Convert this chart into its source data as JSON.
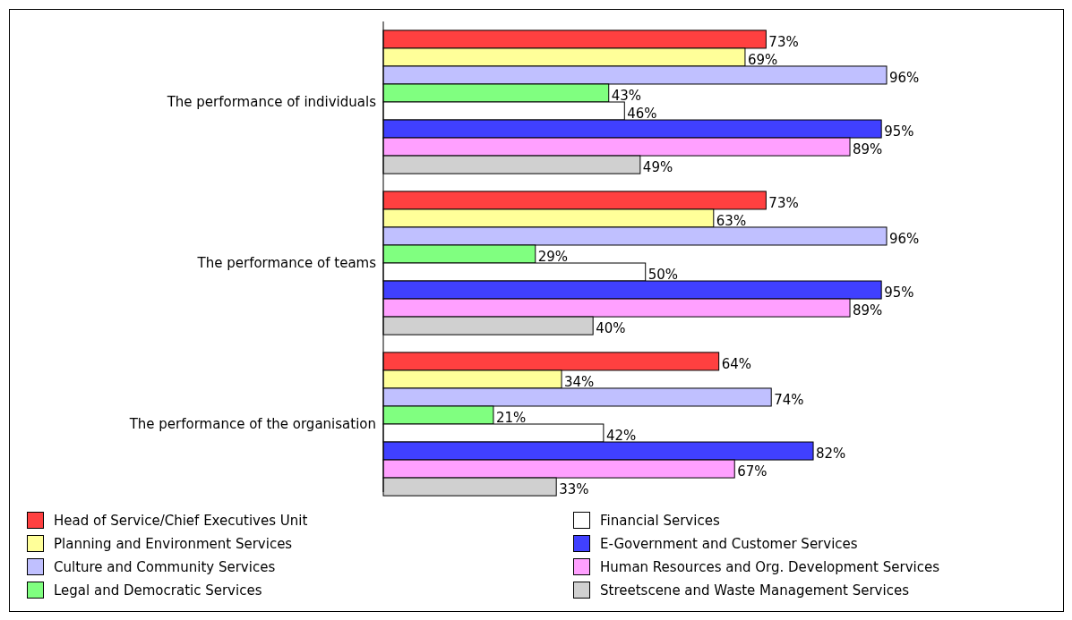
{
  "chart_data": {
    "type": "bar",
    "orientation": "horizontal",
    "categories": [
      "The performance of individuals",
      "The performance of teams",
      "The performance of the organisation"
    ],
    "tick_labels": "y",
    "legend": "bottom",
    "series": [
      {
        "name": "Head of Service/Chief Executives Unit",
        "color": "#ff4040",
        "values": [
          73,
          73,
          64
        ],
        "value_labels": [
          "73%",
          "73%",
          "64%"
        ]
      },
      {
        "name": "Planning and Environment Services",
        "color": "#ffff99",
        "values": [
          69,
          63,
          34
        ],
        "value_labels": [
          "69%",
          "63%",
          "34%"
        ]
      },
      {
        "name": "Culture and Community Services",
        "color": "#c0c0ff",
        "values": [
          96,
          96,
          74
        ],
        "value_labels": [
          "96%",
          "96%",
          "74%"
        ]
      },
      {
        "name": "Legal and Democratic Services",
        "color": "#80ff80",
        "values": [
          43,
          29,
          21
        ],
        "value_labels": [
          "43%",
          "29%",
          "21%"
        ]
      },
      {
        "name": "Financial Services",
        "color": "#ffffff",
        "values": [
          46,
          50,
          42
        ],
        "value_labels": [
          "46%",
          "50%",
          "42%"
        ]
      },
      {
        "name": "E-Government and Customer Services",
        "color": "#4040ff",
        "values": [
          95,
          95,
          82
        ],
        "value_labels": [
          "95%",
          "95%",
          "82%"
        ]
      },
      {
        "name": "Human Resources and Org. Development Services",
        "color": "#ffa0ff",
        "values": [
          89,
          89,
          67
        ],
        "value_labels": [
          "89%",
          "89%",
          "67%"
        ]
      },
      {
        "name": "Streetscene and Waste Management Services",
        "color": "#d0d0d0",
        "values": [
          49,
          40,
          33
        ],
        "value_labels": [
          "49%",
          "40%",
          "33%"
        ]
      }
    ]
  }
}
